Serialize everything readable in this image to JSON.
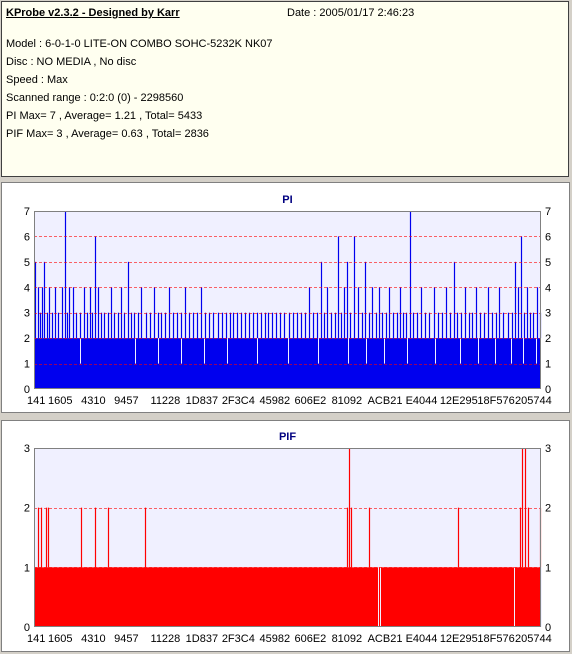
{
  "header": {
    "title": "KProbe v2.3.2 - Designed by Karr",
    "date": "Date : 2005/01/17 2:46:23",
    "lines": [
      "Model : 6-0-1-0 LITE-ON COMBO SOHC-5232K NK07",
      "Disc : NO MEDIA , No disc",
      "Speed : Max",
      "Scanned range : 0:2:0 (0) - 2298560",
      "PI Max= 7 , Average= 1.21 , Total= 5433",
      "PIF Max= 3 , Average= 0.63 , Total= 2836"
    ]
  },
  "colors": {
    "pi": "#0000ee",
    "pif": "#ff0000",
    "plot_bg": "#f0f0ff",
    "grid": "#ff0000"
  },
  "chart_data": [
    {
      "type": "bar",
      "title": "PI",
      "x_tick_labels": [
        "141",
        "1605",
        "4310",
        "9457",
        "11228",
        "1D837",
        "2F3C4",
        "45982",
        "606E2",
        "81092",
        "ACB21",
        "E4044",
        "12E295",
        "18F576",
        "205744"
      ],
      "ylim": [
        0,
        7
      ],
      "y_ticks": [
        0,
        1,
        2,
        3,
        4,
        5,
        6,
        7
      ],
      "grid": "dashed horizontal",
      "baseline": 2,
      "spikes": [
        [
          0.002,
          5
        ],
        [
          0.008,
          4
        ],
        [
          0.012,
          3
        ],
        [
          0.016,
          4
        ],
        [
          0.02,
          5
        ],
        [
          0.026,
          3
        ],
        [
          0.03,
          4
        ],
        [
          0.036,
          3
        ],
        [
          0.042,
          4
        ],
        [
          0.048,
          3
        ],
        [
          0.056,
          4
        ],
        [
          0.062,
          7
        ],
        [
          0.066,
          3
        ],
        [
          0.07,
          4
        ],
        [
          0.076,
          4
        ],
        [
          0.082,
          3
        ],
        [
          0.09,
          3
        ],
        [
          0.098,
          4
        ],
        [
          0.104,
          3
        ],
        [
          0.11,
          4
        ],
        [
          0.114,
          3
        ],
        [
          0.12,
          6
        ],
        [
          0.126,
          4
        ],
        [
          0.132,
          3
        ],
        [
          0.138,
          3
        ],
        [
          0.146,
          3
        ],
        [
          0.152,
          4
        ],
        [
          0.158,
          3
        ],
        [
          0.166,
          3
        ],
        [
          0.172,
          4
        ],
        [
          0.178,
          3
        ],
        [
          0.186,
          5
        ],
        [
          0.192,
          3
        ],
        [
          0.198,
          3
        ],
        [
          0.206,
          3
        ],
        [
          0.212,
          4
        ],
        [
          0.22,
          3
        ],
        [
          0.228,
          3
        ],
        [
          0.236,
          4
        ],
        [
          0.244,
          3
        ],
        [
          0.25,
          3
        ],
        [
          0.258,
          3
        ],
        [
          0.266,
          4
        ],
        [
          0.274,
          3
        ],
        [
          0.282,
          3
        ],
        [
          0.29,
          3
        ],
        [
          0.298,
          4
        ],
        [
          0.306,
          3
        ],
        [
          0.314,
          3
        ],
        [
          0.322,
          3
        ],
        [
          0.33,
          4
        ],
        [
          0.338,
          3
        ],
        [
          0.346,
          3
        ],
        [
          0.354,
          3
        ],
        [
          0.362,
          3
        ],
        [
          0.37,
          3
        ],
        [
          0.378,
          3
        ],
        [
          0.386,
          3
        ],
        [
          0.392,
          3
        ],
        [
          0.4,
          3
        ],
        [
          0.408,
          3
        ],
        [
          0.416,
          3
        ],
        [
          0.424,
          3
        ],
        [
          0.432,
          3
        ],
        [
          0.44,
          3
        ],
        [
          0.448,
          3
        ],
        [
          0.456,
          3
        ],
        [
          0.462,
          3
        ],
        [
          0.47,
          3
        ],
        [
          0.478,
          3
        ],
        [
          0.486,
          3
        ],
        [
          0.494,
          3
        ],
        [
          0.502,
          3
        ],
        [
          0.51,
          3
        ],
        [
          0.518,
          3
        ],
        [
          0.526,
          3
        ],
        [
          0.534,
          3
        ],
        [
          0.542,
          4
        ],
        [
          0.55,
          3
        ],
        [
          0.558,
          3
        ],
        [
          0.566,
          5
        ],
        [
          0.572,
          3
        ],
        [
          0.578,
          4
        ],
        [
          0.586,
          3
        ],
        [
          0.594,
          3
        ],
        [
          0.6,
          6
        ],
        [
          0.606,
          3
        ],
        [
          0.612,
          4
        ],
        [
          0.618,
          5
        ],
        [
          0.624,
          3
        ],
        [
          0.632,
          6
        ],
        [
          0.64,
          4
        ],
        [
          0.646,
          3
        ],
        [
          0.652,
          5
        ],
        [
          0.66,
          3
        ],
        [
          0.666,
          4
        ],
        [
          0.674,
          3
        ],
        [
          0.68,
          4
        ],
        [
          0.686,
          3
        ],
        [
          0.694,
          3
        ],
        [
          0.7,
          4
        ],
        [
          0.708,
          3
        ],
        [
          0.716,
          3
        ],
        [
          0.722,
          4
        ],
        [
          0.728,
          3
        ],
        [
          0.734,
          3
        ],
        [
          0.742,
          7
        ],
        [
          0.748,
          3
        ],
        [
          0.756,
          3
        ],
        [
          0.764,
          4
        ],
        [
          0.772,
          3
        ],
        [
          0.78,
          3
        ],
        [
          0.788,
          4
        ],
        [
          0.796,
          3
        ],
        [
          0.804,
          3
        ],
        [
          0.812,
          4
        ],
        [
          0.82,
          3
        ],
        [
          0.828,
          5
        ],
        [
          0.834,
          3
        ],
        [
          0.842,
          3
        ],
        [
          0.85,
          4
        ],
        [
          0.858,
          3
        ],
        [
          0.864,
          3
        ],
        [
          0.872,
          4
        ],
        [
          0.88,
          3
        ],
        [
          0.888,
          3
        ],
        [
          0.896,
          4
        ],
        [
          0.904,
          3
        ],
        [
          0.912,
          3
        ],
        [
          0.918,
          4
        ],
        [
          0.926,
          3
        ],
        [
          0.934,
          3
        ],
        [
          0.942,
          3
        ],
        [
          0.948,
          5
        ],
        [
          0.954,
          4
        ],
        [
          0.96,
          6
        ],
        [
          0.966,
          3
        ],
        [
          0.972,
          4
        ],
        [
          0.978,
          3
        ],
        [
          0.984,
          3
        ],
        [
          0.992,
          4
        ],
        [
          0.998,
          3
        ]
      ],
      "dips": [
        [
          0.09,
          1
        ],
        [
          0.2,
          1
        ],
        [
          0.245,
          1
        ],
        [
          0.29,
          1
        ],
        [
          0.335,
          1
        ],
        [
          0.38,
          1
        ],
        [
          0.44,
          1
        ],
        [
          0.5,
          1
        ],
        [
          0.56,
          1
        ],
        [
          0.62,
          1
        ],
        [
          0.655,
          1
        ],
        [
          0.69,
          1
        ],
        [
          0.735,
          1
        ],
        [
          0.79,
          1
        ],
        [
          0.84,
          1
        ],
        [
          0.875,
          1
        ],
        [
          0.91,
          1
        ],
        [
          0.94,
          1
        ],
        [
          0.965,
          1
        ],
        [
          0.99,
          1
        ]
      ]
    },
    {
      "type": "bar",
      "title": "PIF",
      "x_tick_labels": [
        "141",
        "1605",
        "4310",
        "9457",
        "11228",
        "1D837",
        "2F3C4",
        "45982",
        "606E2",
        "81092",
        "ACB21",
        "E4044",
        "12E295",
        "18F576",
        "205744"
      ],
      "ylim": [
        0,
        3
      ],
      "y_ticks": [
        0,
        1,
        2,
        3
      ],
      "grid": "dashed horizontal",
      "baseline": 1,
      "spikes": [
        [
          0.008,
          2
        ],
        [
          0.014,
          2
        ],
        [
          0.024,
          2
        ],
        [
          0.028,
          2
        ],
        [
          0.092,
          2
        ],
        [
          0.12,
          2
        ],
        [
          0.146,
          2
        ],
        [
          0.218,
          2
        ],
        [
          0.618,
          2
        ],
        [
          0.622,
          3
        ],
        [
          0.626,
          2
        ],
        [
          0.66,
          2
        ],
        [
          0.836,
          2
        ],
        [
          0.958,
          2
        ],
        [
          0.962,
          3
        ],
        [
          0.968,
          3
        ],
        [
          0.974,
          2
        ],
        [
          0.998,
          2
        ]
      ],
      "dips": [
        [
          0.0,
          0
        ],
        [
          0.678,
          0
        ],
        [
          0.682,
          0
        ],
        [
          0.946,
          0
        ],
        [
          1.0,
          0
        ]
      ]
    }
  ]
}
